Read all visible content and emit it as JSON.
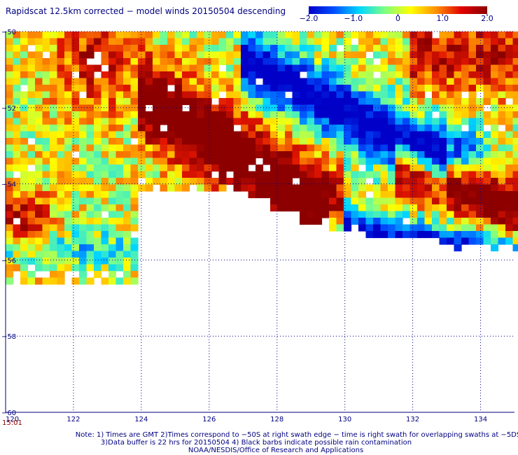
{
  "title": "Rapidscat 12.5km corrected − model winds 20150504 descending",
  "colorbar": {
    "labels": [
      "−2.0",
      "−1.0",
      "0",
      "1.0",
      "2.0"
    ],
    "values": [
      -2,
      -1,
      0,
      1,
      2
    ],
    "range": [
      -2,
      2
    ],
    "colors": [
      "#0000c8",
      "#0050ff",
      "#00d8ff",
      "#80ff80",
      "#ffff00",
      "#ff9000",
      "#e00000",
      "#8b0000"
    ]
  },
  "axes": {
    "lon_range": [
      120,
      135
    ],
    "lat_range": [
      -60,
      -50
    ],
    "x_ticks": [
      120,
      122,
      124,
      126,
      128,
      130,
      132,
      134
    ],
    "x_labels": [
      "120",
      "122",
      "124",
      "126",
      "128",
      "130",
      "132",
      "134"
    ],
    "y_ticks": [
      -50,
      -52,
      -54,
      -56,
      -58,
      -60
    ],
    "y_labels": [
      "−50",
      "−52",
      "−54",
      "−56",
      "−58",
      "−60"
    ],
    "grid": true
  },
  "timestamp": "15:01",
  "notes": [
    "Note: 1) Times are GMT 2)Times correspond to −50S at right swath edge − time is right swath for overlapping swaths at −5DS",
    "3)Data buffer is 22 hrs for 20150504 4) Black barbs indicate possible rain contamination",
    "NOAA/NESDIS/Office of Research and Applications"
  ]
}
